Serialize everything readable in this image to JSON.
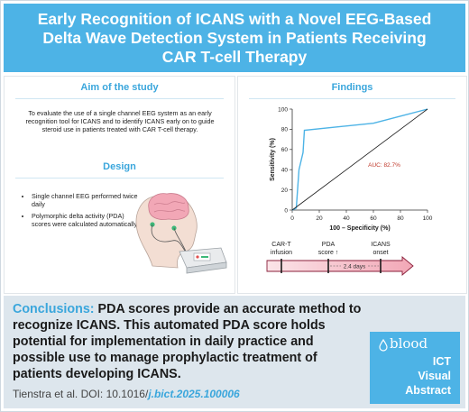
{
  "header": {
    "title": "Early Recognition of ICANS with a Novel EEG-Based Delta Wave Detection System in Patients Receiving CAR T-cell Therapy"
  },
  "aim": {
    "heading": "Aim of the study",
    "text": "To evaluate the use of a single channel EEG system as an early recognition tool for ICANS and to identify ICANS early on to guide steroid use in patients treated with CAR T-cell therapy."
  },
  "design": {
    "heading": "Design",
    "bullets": [
      "Single channel EEG performed twice daily",
      "Polymorphic delta activity (PDA) scores were calculated automatically"
    ]
  },
  "findings": {
    "heading": "Findings",
    "timeline": {
      "label1": "CAR-T",
      "label1b": "infusion",
      "label2": "PDA",
      "label2b": "score ↑",
      "label3": "ICANS",
      "label3b": "onset",
      "interval": "2.4 days"
    }
  },
  "chart_data": {
    "type": "line",
    "xlabel": "100 – Specificity (%)",
    "ylabel": "Sensitivity (%)",
    "xlim": [
      0,
      100
    ],
    "ylim": [
      0,
      100
    ],
    "xticks": [
      "0",
      "20",
      "40",
      "60",
      "80",
      "100"
    ],
    "yticks": [
      "0",
      "20",
      "40",
      "60",
      "80",
      "100"
    ],
    "series": [
      {
        "values": [
          [
            0,
            0
          ],
          [
            3,
            2
          ],
          [
            5,
            40
          ],
          [
            8,
            57
          ],
          [
            9,
            79
          ],
          [
            60,
            86
          ],
          [
            100,
            100
          ]
        ],
        "color": "#4db3e6"
      },
      {
        "values": [
          [
            0,
            0
          ],
          [
            100,
            100
          ]
        ],
        "color": "#1a1a1a"
      }
    ],
    "annotations": [
      {
        "text": "AUC: 82.7%",
        "x": 68,
        "y": 43,
        "color": "#c0392b"
      }
    ]
  },
  "conclusions": {
    "label": "Conclusions:",
    "text": "PDA scores provide an accurate method to recognize ICANS. This automated PDA score holds potential for implementation in daily practice and possible use to manage prophylactic treatment of patients developing ICANS."
  },
  "citation": {
    "prefix": "Tienstra et al. DOI: 10.1016/",
    "highlight": "j.bict",
    "suffix": ".2025.100006"
  },
  "badge": {
    "brand": "blood",
    "line1": "ICT",
    "line2": "Visual",
    "line3": "Abstract"
  },
  "colors": {
    "header": "#4db3e6",
    "accent": "#3aa6dc",
    "conclusions_bg": "#dde6ed",
    "auc": "#c0392b"
  }
}
